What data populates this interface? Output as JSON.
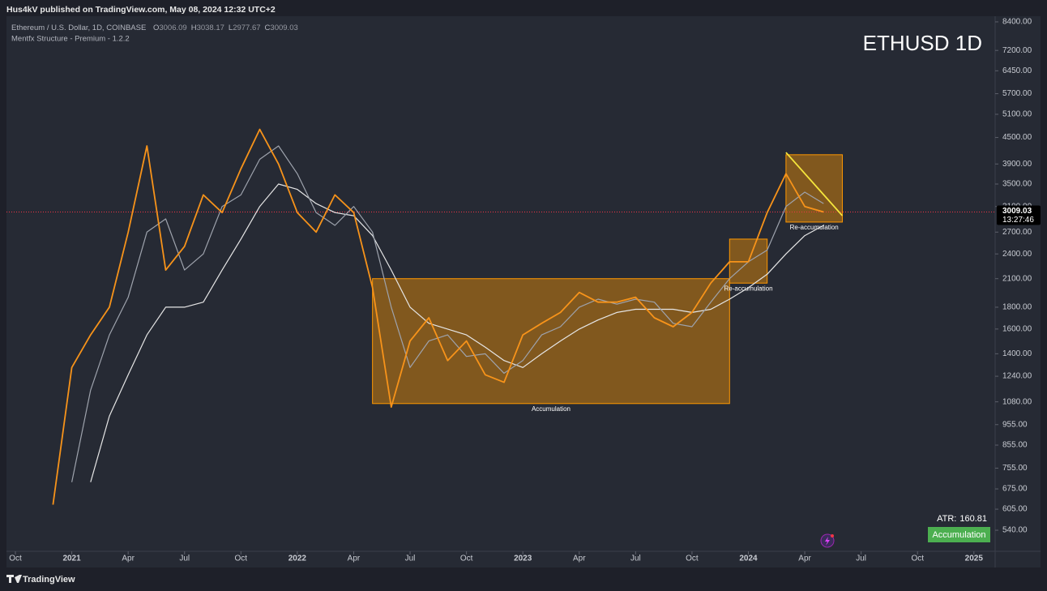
{
  "header": {
    "publisher": "Hus4kV published on TradingView.com, May 08, 2024 12:32 UTC+2",
    "symbol": "Ethereum / U.S. Dollar, 1D, COINBASE",
    "ohlc": [
      {
        "key": "O",
        "value": 3006.09
      },
      {
        "key": "H",
        "value": 3038.17
      },
      {
        "key": "L",
        "value": 2977.67
      },
      {
        "key": "C",
        "value": 3009.03
      }
    ],
    "indicator": "Mentfx Structure - Premium - 1.2.2"
  },
  "chart_data": {
    "type": "line",
    "title": "ETHUSD 1D",
    "log_scale": true,
    "x": [
      "2020-12",
      "2021-01",
      "2021-02",
      "2021-03",
      "2021-04",
      "2021-05",
      "2021-06",
      "2021-07",
      "2021-08",
      "2021-09",
      "2021-10",
      "2021-11",
      "2021-12",
      "2022-01",
      "2022-02",
      "2022-03",
      "2022-04",
      "2022-05",
      "2022-06",
      "2022-07",
      "2022-08",
      "2022-09",
      "2022-10",
      "2022-11",
      "2022-12",
      "2023-01",
      "2023-02",
      "2023-03",
      "2023-04",
      "2023-05",
      "2023-06",
      "2023-07",
      "2023-08",
      "2023-09",
      "2023-10",
      "2023-11",
      "2023-12",
      "2024-01",
      "2024-02",
      "2024-03",
      "2024-04",
      "2024-05"
    ],
    "series": [
      {
        "color": "#f7931a",
        "values": [
          620,
          1300,
          1550,
          1800,
          2700,
          4300,
          2200,
          2500,
          3300,
          3000,
          3800,
          4700,
          3900,
          3000,
          2700,
          3300,
          3000,
          2000,
          1050,
          1500,
          1700,
          1350,
          1500,
          1250,
          1200,
          1550,
          1650,
          1750,
          1950,
          1850,
          1850,
          1900,
          1700,
          1620,
          1750,
          2050,
          2300,
          2300,
          3000,
          3700,
          3100,
          3009
        ]
      },
      {
        "color": "#9ea3ad",
        "values": [
          null,
          700,
          1150,
          1550,
          1900,
          2700,
          2900,
          2200,
          2400,
          3100,
          3300,
          4000,
          4300,
          3700,
          3000,
          2800,
          3100,
          2700,
          1800,
          1300,
          1500,
          1550,
          1380,
          1400,
          1260,
          1350,
          1550,
          1620,
          1800,
          1880,
          1830,
          1880,
          1850,
          1650,
          1620,
          1850,
          2100,
          2300,
          2450,
          3100,
          3350,
          3150
        ]
      },
      {
        "color": "#e6e6e6",
        "values": [
          null,
          null,
          700,
          1000,
          1250,
          1550,
          1800,
          1800,
          1850,
          2200,
          2600,
          3100,
          3500,
          3400,
          3150,
          3000,
          2950,
          2650,
          2200,
          1800,
          1650,
          1600,
          1550,
          1450,
          1350,
          1300,
          1400,
          1500,
          1600,
          1680,
          1750,
          1780,
          1780,
          1780,
          1750,
          1780,
          1880,
          2000,
          2150,
          2400,
          2650,
          2800
        ]
      }
    ],
    "xlim": [
      "2020-10",
      "2025-02"
    ],
    "xticks": [
      {
        "value": "2020-10",
        "label": "Oct"
      },
      {
        "value": "2021-01",
        "label": "2021"
      },
      {
        "value": "2021-04",
        "label": "Apr"
      },
      {
        "value": "2021-07",
        "label": "Jul"
      },
      {
        "value": "2021-10",
        "label": "Oct"
      },
      {
        "value": "2022-01",
        "label": "2022"
      },
      {
        "value": "2022-04",
        "label": "Apr"
      },
      {
        "value": "2022-07",
        "label": "Jul"
      },
      {
        "value": "2022-10",
        "label": "Oct"
      },
      {
        "value": "2023-01",
        "label": "2023"
      },
      {
        "value": "2023-04",
        "label": "Apr"
      },
      {
        "value": "2023-07",
        "label": "Jul"
      },
      {
        "value": "2023-10",
        "label": "Oct"
      },
      {
        "value": "2024-01",
        "label": "2024"
      },
      {
        "value": "2024-04",
        "label": "Apr"
      },
      {
        "value": "2024-07",
        "label": "Jul"
      },
      {
        "value": "2024-10",
        "label": "Oct"
      },
      {
        "value": "2025-01",
        "label": "2025"
      }
    ],
    "ylim": [
      482,
      8660
    ],
    "yticks": [
      {
        "value": 8400,
        "label": "8400.00"
      },
      {
        "value": 7200,
        "label": "7200.00"
      },
      {
        "value": 6450,
        "label": "6450.00"
      },
      {
        "value": 5700,
        "label": "5700.00"
      },
      {
        "value": 5100,
        "label": "5100.00"
      },
      {
        "value": 4500,
        "label": "4500.00"
      },
      {
        "value": 3900,
        "label": "3900.00"
      },
      {
        "value": 3500,
        "label": "3500.00"
      },
      {
        "value": 3100,
        "label": "3100.00"
      },
      {
        "value": 2700,
        "label": "2700.00"
      },
      {
        "value": 2400,
        "label": "2400.00"
      },
      {
        "value": 2100,
        "label": "2100.00"
      },
      {
        "value": 1800,
        "label": "1800.00"
      },
      {
        "value": 1600,
        "label": "1600.00"
      },
      {
        "value": 1400,
        "label": "1400.00"
      },
      {
        "value": 1240,
        "label": "1240.00"
      },
      {
        "value": 1080,
        "label": "1080.00"
      },
      {
        "value": 955,
        "label": "955.00"
      },
      {
        "value": 855,
        "label": "855.00"
      },
      {
        "value": 755,
        "label": "755.00"
      },
      {
        "value": 675,
        "label": "675.00"
      },
      {
        "value": 605,
        "label": "605.00"
      },
      {
        "value": 540,
        "label": "540.00"
      }
    ],
    "zones": [
      {
        "label": "Accumulation",
        "x": [
          "2022-05",
          "2023-12"
        ],
        "y": [
          1070,
          2100
        ],
        "color": "#ff9800"
      },
      {
        "label": "Re-accumulation",
        "x": [
          "2023-12",
          "2024-02"
        ],
        "y": [
          2050,
          2600
        ],
        "color": "#ff9800"
      },
      {
        "label": "Re-accumulation",
        "x": [
          "2024-03",
          "2024-06"
        ],
        "y": [
          2850,
          4100
        ],
        "color": "#ff9800"
      }
    ],
    "trendline": {
      "x": [
        "2024-03",
        "2024-06"
      ],
      "y": [
        4150,
        2950
      ],
      "color": "#f5e63c"
    },
    "last_price": {
      "value": 3009.03,
      "countdown": "13:27:46",
      "color": "#f23645"
    },
    "atr": {
      "label": "ATR:",
      "value": 160.81
    },
    "status": "Accumulation"
  },
  "footer": {
    "brand": "TradingView"
  }
}
